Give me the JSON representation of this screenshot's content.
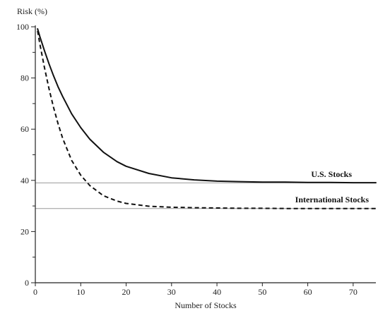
{
  "chart_data": {
    "type": "line",
    "ylabel": "Risk (%)",
    "xlabel": "Number of Stocks",
    "xlim": [
      0,
      75
    ],
    "ylim": [
      0,
      100
    ],
    "x_ticks": [
      0,
      10,
      20,
      30,
      40,
      50,
      60,
      70
    ],
    "y_ticks_labeled": [
      0,
      20,
      40,
      60,
      80,
      100
    ],
    "y_ticks_minor": [
      10,
      30,
      50,
      70,
      90
    ],
    "grid": false,
    "reference_lines": [
      {
        "y": 39,
        "color": "#999999"
      },
      {
        "y": 29,
        "color": "#999999"
      }
    ],
    "series": [
      {
        "name": "U.S. Stocks",
        "style": "solid",
        "color": "#111111",
        "x": [
          0.5,
          1,
          2,
          3,
          4,
          5,
          6,
          8,
          10,
          12,
          15,
          18,
          20,
          25,
          30,
          35,
          40,
          45,
          50,
          55,
          60,
          65,
          70,
          75
        ],
        "y": [
          99.2,
          96.2,
          90.7,
          85.6,
          80.9,
          76.6,
          72.8,
          66.0,
          60.6,
          56.1,
          51.0,
          47.3,
          45.5,
          42.7,
          41.0,
          40.2,
          39.7,
          39.5,
          39.3,
          39.3,
          39.2,
          39.2,
          39.1,
          39.1
        ]
      },
      {
        "name": "International Stocks",
        "style": "dashed",
        "color": "#111111",
        "x": [
          0.5,
          1,
          2,
          3,
          4,
          5,
          6,
          8,
          10,
          12,
          15,
          18,
          20,
          25,
          30,
          35,
          40,
          45,
          50,
          55,
          60,
          65,
          70,
          75
        ],
        "y": [
          98.4,
          93.3,
          84.1,
          75.9,
          68.6,
          62.2,
          56.5,
          47.8,
          42.0,
          38.0,
          34.0,
          31.9,
          31.0,
          29.9,
          29.5,
          29.3,
          29.2,
          29.1,
          29.1,
          29.0,
          29.0,
          29.0,
          29.0,
          29.0
        ]
      }
    ]
  }
}
